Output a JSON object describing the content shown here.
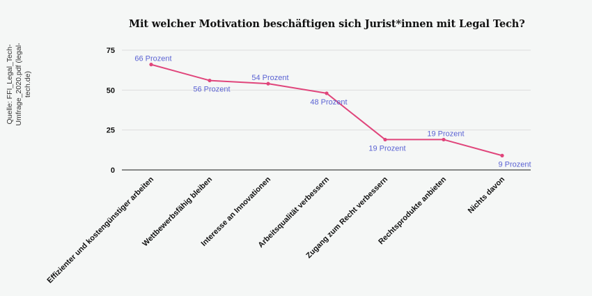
{
  "source_note": "Quelle: FFI_Legal_Tech-\nUmfrage_2020.pdf (legal-tech.de)",
  "colors": {
    "line": "#e0457b",
    "data_label": "#5b63d3",
    "grid": "#dddddd",
    "axis": "#444444",
    "background": "#f5f7f6"
  },
  "chart_data": {
    "type": "line",
    "title": "Mit welcher Motivation beschäftigen sich Jurist*innen mit Legal Tech?",
    "xlabel": "",
    "ylabel": "",
    "categories": [
      "Effizienter und kostengünstiger arbeiten",
      "Wettbewerbsfähig bleiben",
      "Interesse an Innovationen",
      "Arbeitsqualität verbessern",
      "Zugang zum Recht verbessern",
      "Rechtsprodukte anbieten",
      "Nichts davon"
    ],
    "series": [
      {
        "values": [
          66,
          56,
          54,
          48,
          19,
          19,
          9
        ],
        "data_labels": [
          "66 Prozent",
          "56 Prozent",
          "54 Prozent",
          "48 Prozent",
          "19 Prozent",
          "19 Prozent",
          "9 Prozent"
        ]
      }
    ],
    "ylim": [
      0,
      75
    ],
    "yticks": [
      0,
      25,
      50,
      75
    ],
    "grid": true,
    "legend": "none"
  }
}
